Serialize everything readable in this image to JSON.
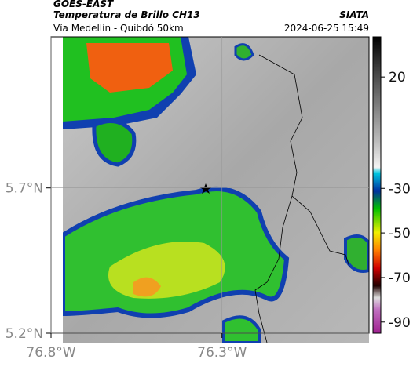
{
  "header": {
    "title": "GOES-EAST",
    "subtitle": "Temperatura de Brillo CH13",
    "source": "SIATA",
    "route": "Vía Medellín - Quibdó 50km",
    "datetime": "2024-06-25 15:49"
  },
  "map": {
    "ylim": [
      5.2,
      6.22
    ],
    "xlim": [
      -76.8,
      -75.87
    ],
    "yticks": [
      {
        "value": 5.7,
        "label": "5.7°N"
      },
      {
        "value": 5.2,
        "label": "5.2°N"
      }
    ],
    "xticks": [
      {
        "value": -76.8,
        "label": "76.8°W"
      },
      {
        "value": -76.3,
        "label": "76.3°W"
      }
    ]
  },
  "colorbar": {
    "lim": [
      -95,
      38
    ],
    "ticks": [
      20,
      -30,
      -50,
      -70,
      -90
    ]
  }
}
